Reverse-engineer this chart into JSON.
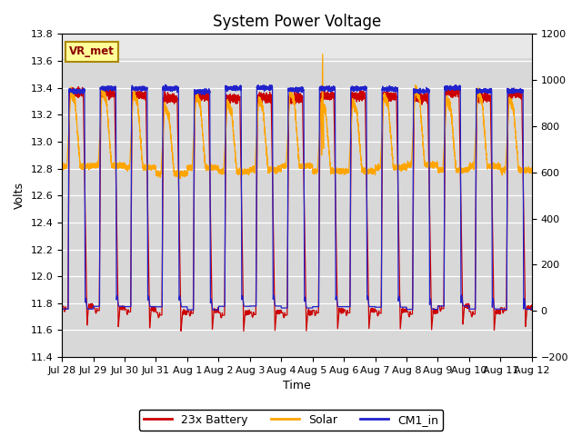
{
  "title": "System Power Voltage",
  "xlabel": "Time",
  "ylabel": "Volts",
  "ylim_left": [
    11.4,
    13.8
  ],
  "ylim_right": [
    -200,
    1200
  ],
  "yticks_left": [
    11.4,
    11.6,
    11.8,
    12.0,
    12.2,
    12.4,
    12.6,
    12.8,
    13.0,
    13.2,
    13.4,
    13.6,
    13.8
  ],
  "yticks_right": [
    -200,
    0,
    200,
    400,
    600,
    800,
    1000,
    1200
  ],
  "xtick_labels": [
    "Jul 28",
    "Jul 29",
    "Jul 30",
    "Jul 31",
    "Aug 1",
    "Aug 2",
    "Aug 3",
    "Aug 4",
    "Aug 5",
    "Aug 6",
    "Aug 7",
    "Aug 8",
    "Aug 9",
    "Aug 10",
    "Aug 11",
    "Aug 12"
  ],
  "color_battery": "#cc0000",
  "color_solar": "#ffa500",
  "color_cm1": "#2222cc",
  "legend_label_battery": "23x Battery",
  "legend_label_solar": "Solar",
  "legend_label_cm1": "CM1_in",
  "vr_met_label": "VR_met",
  "plot_bg_top": "#dcdcdc",
  "plot_bg_bottom": "#c8c8c8",
  "figsize": [
    6.4,
    4.8
  ],
  "dpi": 100,
  "title_fontsize": 12,
  "axis_fontsize": 9,
  "tick_fontsize": 8
}
